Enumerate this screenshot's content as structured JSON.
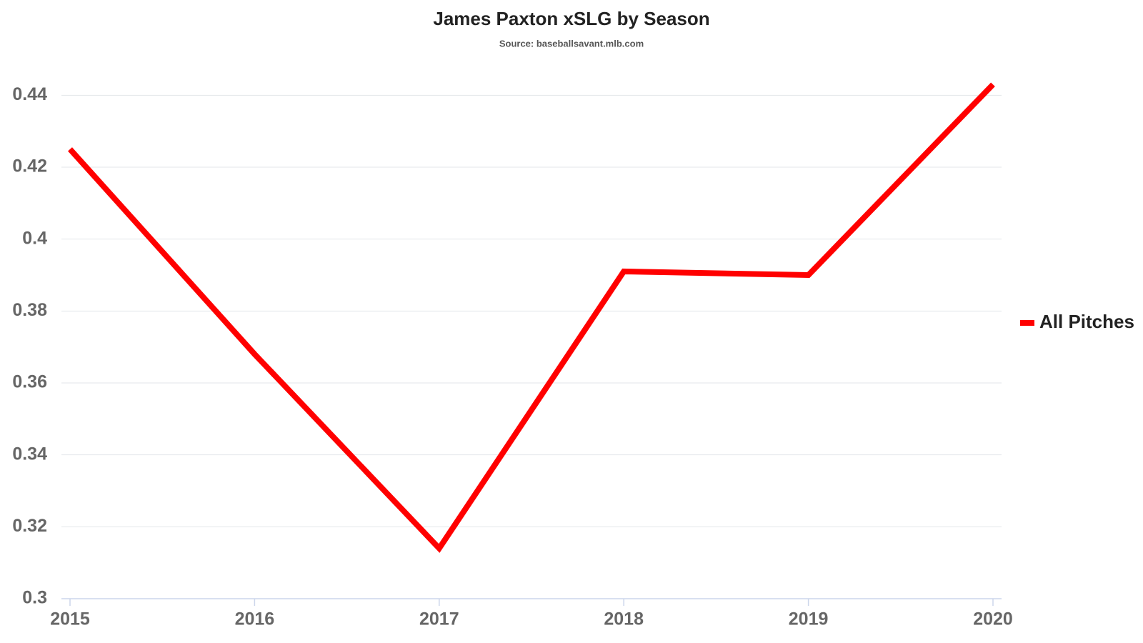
{
  "chart_data": {
    "type": "line",
    "title": "James Paxton xSLG by Season",
    "subtitle": "Source: baseballsavant.mlb.com",
    "categories": [
      "2015",
      "2016",
      "2017",
      "2018",
      "2019",
      "2020"
    ],
    "series": [
      {
        "name": "All Pitches",
        "color": "#ff0000",
        "values": [
          0.425,
          0.368,
          0.314,
          0.391,
          0.39,
          0.443
        ]
      }
    ],
    "ylim": [
      0.3,
      0.45
    ],
    "yticks": [
      0.3,
      0.32,
      0.34,
      0.36,
      0.38,
      0.4,
      0.42,
      0.44
    ],
    "grid": true,
    "legend": "right"
  }
}
